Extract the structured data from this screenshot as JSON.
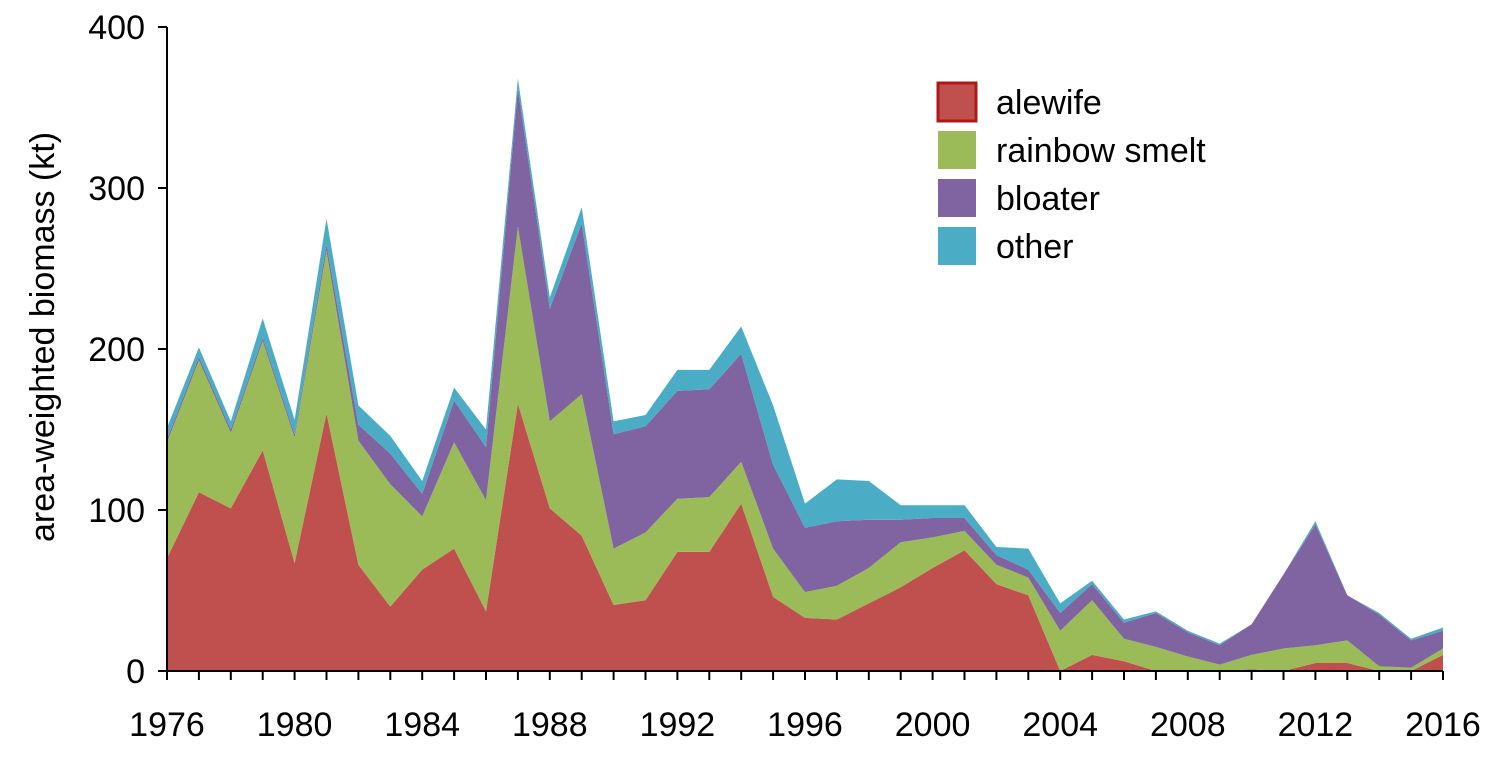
{
  "chart_data": {
    "type": "area",
    "stacked": true,
    "title": "",
    "xlabel": "",
    "ylabel": "area-weighted biomass (kt)",
    "xlim": [
      1976,
      2016
    ],
    "ylim": [
      0,
      400
    ],
    "yticks": [
      0,
      100,
      200,
      300,
      400
    ],
    "xticks": [
      1976,
      1980,
      1984,
      1988,
      1992,
      1996,
      2000,
      2004,
      2008,
      2012,
      2016
    ],
    "grid": false,
    "legend_position": "top-right",
    "x": [
      1976,
      1977,
      1978,
      1979,
      1980,
      1981,
      1982,
      1983,
      1984,
      1985,
      1986,
      1987,
      1988,
      1989,
      1990,
      1991,
      1992,
      1993,
      1994,
      1995,
      1996,
      1997,
      1998,
      1999,
      2000,
      2001,
      2002,
      2003,
      2004,
      2005,
      2006,
      2007,
      2008,
      2009,
      2010,
      2011,
      2012,
      2013,
      2014,
      2015,
      2016
    ],
    "series": [
      {
        "name": "alewife",
        "color": "#c0504d",
        "values": [
          70,
          111,
          101,
          137,
          67,
          160,
          66,
          40,
          63,
          76,
          37,
          166,
          101,
          84,
          41,
          44,
          74,
          74,
          104,
          46,
          33,
          32,
          42,
          52,
          64,
          75,
          54,
          47,
          0,
          10,
          6,
          0,
          0,
          0,
          1,
          0,
          5,
          5,
          0,
          0,
          10
        ]
      },
      {
        "name": "rainbow smelt",
        "color": "#9bbb59",
        "values": [
          72,
          82,
          47,
          68,
          78,
          101,
          77,
          76,
          33,
          66,
          69,
          110,
          54,
          88,
          35,
          42,
          33,
          34,
          26,
          30,
          16,
          21,
          22,
          28,
          19,
          12,
          12,
          11,
          25,
          34,
          14,
          15,
          9,
          4,
          9,
          14,
          11,
          14,
          3,
          2,
          4
        ]
      },
      {
        "name": "bloater",
        "color": "#8064a2",
        "values": [
          2,
          2,
          2,
          2,
          2,
          4,
          10,
          19,
          14,
          26,
          33,
          86,
          70,
          106,
          71,
          66,
          67,
          67,
          67,
          52,
          40,
          40,
          30,
          14,
          12,
          8,
          6,
          5,
          11,
          10,
          10,
          21,
          15,
          12,
          19,
          46,
          75,
          28,
          32,
          17,
          11
        ]
      },
      {
        "name": "other",
        "color": "#4bacc6",
        "values": [
          7,
          6,
          5,
          12,
          9,
          16,
          12,
          11,
          8,
          8,
          11,
          6,
          7,
          10,
          8,
          7,
          13,
          12,
          17,
          37,
          15,
          26,
          24,
          9,
          8,
          8,
          5,
          13,
          6,
          2,
          2,
          1,
          1,
          1,
          0,
          0,
          2,
          0,
          1,
          1,
          2
        ]
      }
    ]
  }
}
